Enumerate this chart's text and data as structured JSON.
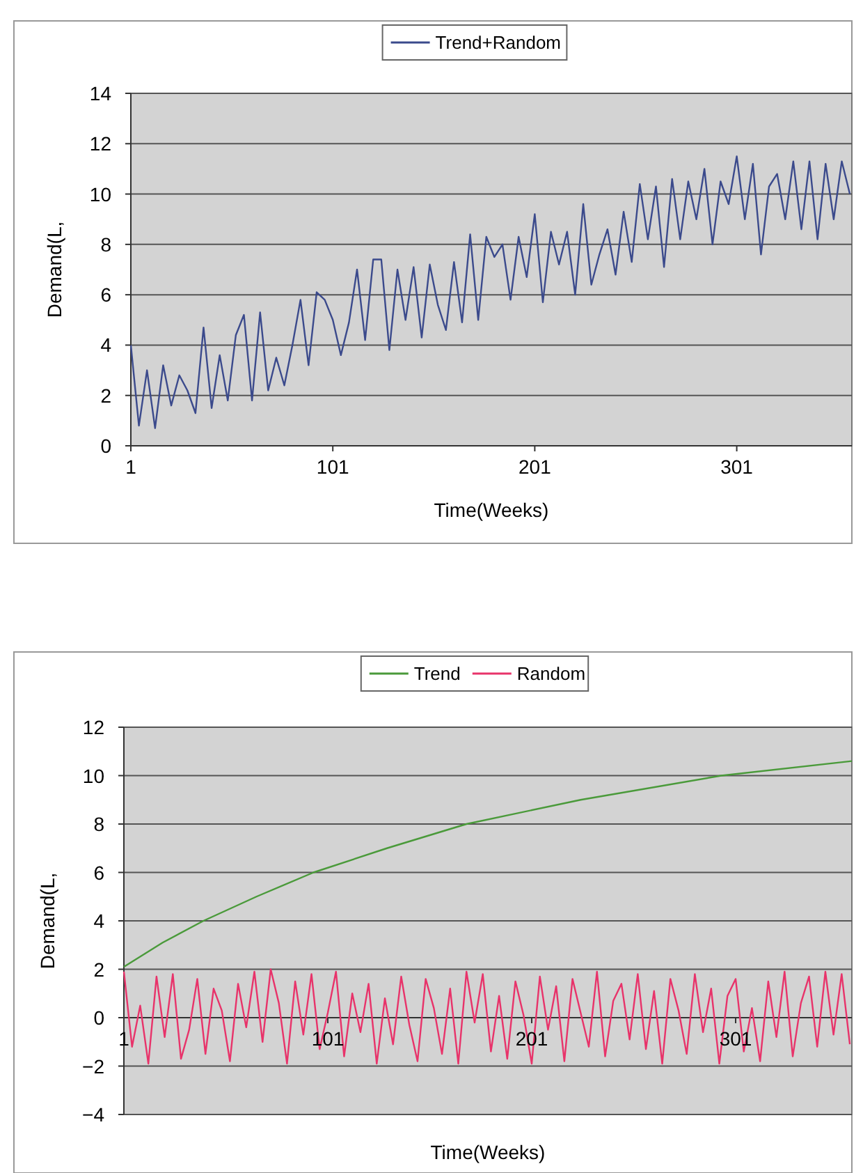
{
  "chart_data": [
    {
      "type": "line",
      "xlabel": "Time(Weeks)",
      "ylabel": "Demand(L,",
      "xlim": [
        1,
        358
      ],
      "xticks": [
        1,
        101,
        201,
        301
      ],
      "ylim": [
        0,
        14
      ],
      "yticks": [
        0,
        2,
        4,
        6,
        8,
        10,
        12,
        14
      ],
      "grid": "y",
      "legend": "top",
      "marker": "none",
      "series": [
        {
          "name": "Trend+Random",
          "color": "#3b4a8c",
          "x": [
            1,
            5,
            9,
            13,
            17,
            21,
            25,
            29,
            33,
            37,
            41,
            45,
            49,
            53,
            57,
            61,
            65,
            69,
            73,
            77,
            81,
            85,
            89,
            93,
            97,
            101,
            105,
            109,
            113,
            117,
            121,
            125,
            129,
            133,
            137,
            141,
            145,
            149,
            153,
            157,
            161,
            165,
            169,
            173,
            177,
            181,
            185,
            189,
            193,
            197,
            201,
            205,
            209,
            213,
            217,
            221,
            225,
            229,
            233,
            237,
            241,
            245,
            249,
            253,
            257,
            261,
            265,
            269,
            273,
            277,
            281,
            285,
            289,
            293,
            297,
            301,
            305,
            309,
            313,
            317,
            321,
            325,
            329,
            333,
            337,
            341,
            345,
            349,
            353,
            357
          ],
          "values": [
            4.0,
            0.8,
            3.0,
            0.7,
            3.2,
            1.6,
            2.8,
            2.2,
            1.3,
            4.7,
            1.5,
            3.6,
            1.8,
            4.4,
            5.2,
            1.8,
            5.3,
            2.2,
            3.5,
            2.4,
            4.0,
            5.8,
            3.2,
            6.1,
            5.8,
            5.0,
            3.6,
            4.9,
            7.0,
            4.2,
            7.4,
            7.4,
            3.8,
            7.0,
            5.0,
            7.1,
            4.3,
            7.2,
            5.6,
            4.6,
            7.3,
            4.9,
            8.4,
            5.0,
            8.3,
            7.5,
            8.0,
            5.8,
            8.3,
            6.7,
            9.2,
            5.7,
            8.5,
            7.2,
            8.5,
            6.0,
            9.6,
            6.4,
            7.6,
            8.6,
            6.8,
            9.3,
            7.3,
            10.4,
            8.2,
            10.3,
            7.1,
            10.6,
            8.2,
            10.5,
            9.0,
            11.0,
            8.0,
            10.5,
            9.6,
            11.5,
            9.0,
            11.2,
            7.6,
            10.3,
            10.8,
            9.0,
            11.3,
            8.6,
            11.3,
            8.2,
            11.2,
            9.0,
            11.3,
            10.0
          ]
        }
      ]
    },
    {
      "type": "line",
      "xlabel": "Time(Weeks)",
      "ylabel": "Demand(L,",
      "xlim": [
        1,
        358
      ],
      "xticks": [
        1,
        101,
        201,
        301
      ],
      "ylim": [
        -4,
        12
      ],
      "yticks": [
        -4,
        -2,
        0,
        2,
        4,
        6,
        8,
        10,
        12
      ],
      "grid": "y",
      "legend": "top",
      "marker": "none",
      "series": [
        {
          "name": "Trend",
          "color": "#4a9a3a",
          "x": [
            1,
            20,
            40,
            66,
            94,
            130,
            169,
            225,
            294,
            358
          ],
          "values": [
            2.1,
            3.1,
            4.0,
            5.0,
            6.0,
            7.0,
            8.0,
            9.0,
            10.0,
            10.6
          ]
        },
        {
          "name": "Random",
          "color": "#e8336a",
          "x": [
            1,
            5,
            9,
            13,
            17,
            21,
            25,
            29,
            33,
            37,
            41,
            45,
            49,
            53,
            57,
            61,
            65,
            69,
            73,
            77,
            81,
            85,
            89,
            93,
            97,
            101,
            105,
            109,
            113,
            117,
            121,
            125,
            129,
            133,
            137,
            141,
            145,
            149,
            153,
            157,
            161,
            165,
            169,
            173,
            177,
            181,
            185,
            189,
            193,
            197,
            201,
            205,
            209,
            213,
            217,
            221,
            225,
            229,
            233,
            237,
            241,
            245,
            249,
            253,
            257,
            261,
            265,
            269,
            273,
            277,
            281,
            285,
            289,
            293,
            297,
            301,
            305,
            309,
            313,
            317,
            321,
            325,
            329,
            333,
            337,
            341,
            345,
            349,
            353,
            357
          ],
          "values": [
            1.9,
            -1.2,
            0.5,
            -1.9,
            1.7,
            -0.8,
            1.8,
            -1.7,
            -0.5,
            1.6,
            -1.5,
            1.2,
            0.3,
            -1.8,
            1.4,
            -0.4,
            1.9,
            -1.0,
            2.0,
            0.6,
            -1.9,
            1.5,
            -0.7,
            1.8,
            -1.3,
            0.2,
            1.9,
            -1.6,
            1.0,
            -0.6,
            1.4,
            -1.9,
            0.8,
            -1.1,
            1.7,
            -0.3,
            -1.8,
            1.6,
            0.4,
            -1.5,
            1.2,
            -1.9,
            1.9,
            -0.2,
            1.8,
            -1.4,
            0.9,
            -1.7,
            1.5,
            0.1,
            -1.9,
            1.7,
            -0.5,
            1.3,
            -1.8,
            1.6,
            0.2,
            -1.2,
            1.9,
            -1.6,
            0.7,
            1.4,
            -0.9,
            1.8,
            -1.3,
            1.1,
            -1.9,
            1.6,
            0.3,
            -1.5,
            1.8,
            -0.6,
            1.2,
            -1.9,
            0.9,
            1.6,
            -1.4,
            0.4,
            -1.8,
            1.5,
            -0.8,
            1.9,
            -1.6,
            0.6,
            1.7,
            -1.2,
            1.9,
            -0.7,
            1.8,
            -1.1
          ]
        }
      ]
    }
  ]
}
